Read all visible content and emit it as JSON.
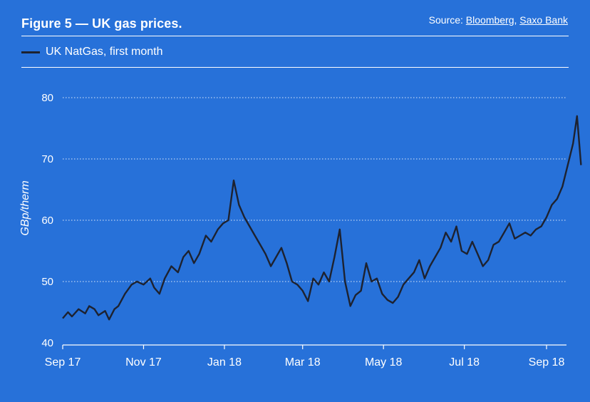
{
  "header": {
    "title": "Figure 5 — UK gas prices.",
    "source_prefix": "Source: ",
    "source_links": [
      "Bloomberg",
      "Saxo Bank"
    ]
  },
  "colors": {
    "background": "#2771d9",
    "line": "#1d2230",
    "text": "#ffffff"
  },
  "chart_data": {
    "type": "line",
    "title": "Figure 5 — UK gas prices.",
    "ylabel": "GBp/therm",
    "ylim": [
      40,
      80
    ],
    "yticks": [
      40,
      50,
      60,
      70,
      80
    ],
    "xticks": [
      "Sep 17",
      "Nov 17",
      "Jan 18",
      "Mar 18",
      "May 18",
      "Jul 18",
      "Sep 18"
    ],
    "grid": "horizontal dotted",
    "legend": "top-left",
    "series": [
      {
        "name": "UK NatGas, first month",
        "x": [
          "2017-09-01",
          "2017-09-05",
          "2017-09-08",
          "2017-09-13",
          "2017-09-18",
          "2017-09-21",
          "2017-09-25",
          "2017-09-28",
          "2017-10-03",
          "2017-10-06",
          "2017-10-10",
          "2017-10-13",
          "2017-10-18",
          "2017-10-23",
          "2017-10-27",
          "2017-11-01",
          "2017-11-06",
          "2017-11-09",
          "2017-11-13",
          "2017-11-17",
          "2017-11-22",
          "2017-11-27",
          "2017-12-01",
          "2017-12-05",
          "2017-12-09",
          "2017-12-13",
          "2017-12-18",
          "2017-12-22",
          "2017-12-27",
          "2017-12-31",
          "2018-01-04",
          "2018-01-08",
          "2018-01-12",
          "2018-01-16",
          "2018-01-20",
          "2018-01-24",
          "2018-01-28",
          "2018-02-01",
          "2018-02-05",
          "2018-02-09",
          "2018-02-13",
          "2018-02-17",
          "2018-02-21",
          "2018-02-25",
          "2018-03-01",
          "2018-03-05",
          "2018-03-09",
          "2018-03-13",
          "2018-03-17",
          "2018-03-21",
          "2018-03-25",
          "2018-03-29",
          "2018-04-02",
          "2018-04-06",
          "2018-04-10",
          "2018-04-14",
          "2018-04-18",
          "2018-04-22",
          "2018-04-26",
          "2018-04-30",
          "2018-05-04",
          "2018-05-08",
          "2018-05-12",
          "2018-05-16",
          "2018-05-20",
          "2018-05-24",
          "2018-05-28",
          "2018-06-01",
          "2018-06-05",
          "2018-06-09",
          "2018-06-13",
          "2018-06-17",
          "2018-06-21",
          "2018-06-25",
          "2018-06-29",
          "2018-07-03",
          "2018-07-07",
          "2018-07-11",
          "2018-07-15",
          "2018-07-19",
          "2018-07-23",
          "2018-07-27",
          "2018-07-31",
          "2018-08-04",
          "2018-08-08",
          "2018-08-12",
          "2018-08-16",
          "2018-08-20",
          "2018-08-24",
          "2018-08-28",
          "2018-09-01",
          "2018-09-05",
          "2018-09-09",
          "2018-09-13",
          "2018-09-17",
          "2018-09-21",
          "2018-09-24",
          "2018-09-27"
        ],
        "values": [
          44.0,
          45.0,
          44.3,
          45.5,
          44.8,
          46.0,
          45.5,
          44.5,
          45.2,
          43.8,
          45.5,
          46.0,
          48.0,
          49.5,
          50.0,
          49.5,
          50.5,
          49.0,
          48.0,
          50.5,
          52.5,
          51.5,
          54.0,
          55.0,
          53.0,
          54.5,
          57.5,
          56.5,
          58.5,
          59.5,
          60.0,
          66.5,
          62.5,
          60.5,
          59.0,
          57.5,
          56.0,
          54.5,
          52.5,
          54.0,
          55.5,
          53.0,
          50.0,
          49.5,
          48.5,
          46.8,
          50.5,
          49.5,
          51.5,
          50.0,
          54.0,
          58.5,
          50.0,
          46.0,
          47.8,
          48.5,
          53.0,
          50.0,
          50.5,
          48.0,
          47.0,
          46.5,
          47.5,
          49.5,
          50.5,
          51.5,
          53.5,
          50.5,
          52.5,
          54.0,
          55.5,
          58.0,
          56.5,
          59.0,
          55.0,
          54.5,
          56.5,
          54.5,
          52.5,
          53.5,
          56.0,
          56.5,
          58.0,
          59.5,
          57.0,
          57.5,
          58.0,
          57.5,
          58.5,
          59.0,
          60.5,
          62.5,
          63.5,
          65.5,
          69.0,
          72.5,
          77.0,
          69.0
        ]
      }
    ]
  }
}
